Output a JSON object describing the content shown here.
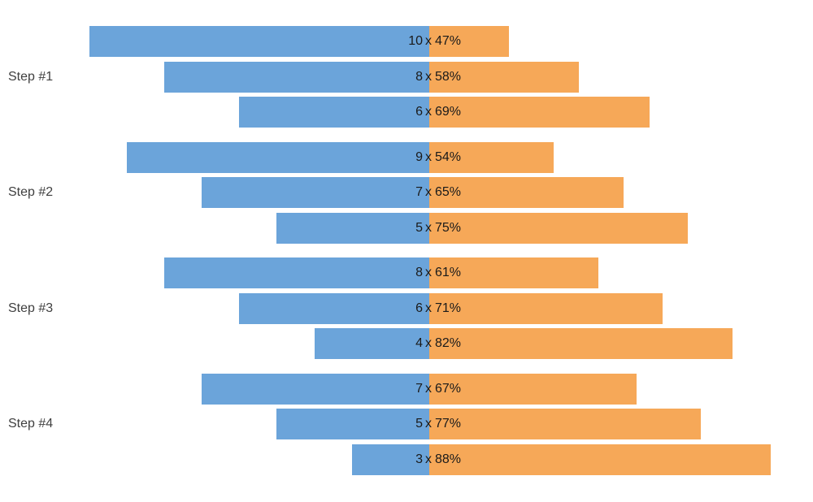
{
  "chart_data": {
    "type": "bar",
    "orientation": "horizontal",
    "variant": "paired-diverging-bars-around-center-axis",
    "title": "",
    "xlabel": "",
    "ylabel": "",
    "grid": false,
    "legend": false,
    "center_separator": "x",
    "percent_suffix": "%",
    "series": [
      {
        "name": "count",
        "side": "left",
        "color": "#6BA4DA"
      },
      {
        "name": "percent",
        "side": "right",
        "color": "#F6A858"
      }
    ],
    "groups": [
      {
        "label": "Step #1",
        "rows": [
          {
            "count": 10,
            "percent": 47,
            "label": "10 x 47%"
          },
          {
            "count": 8,
            "percent": 58,
            "label": "8 x 58%"
          },
          {
            "count": 6,
            "percent": 69,
            "label": "6 x 69%"
          }
        ]
      },
      {
        "label": "Step #2",
        "rows": [
          {
            "count": 9,
            "percent": 54,
            "label": "9 x 54%"
          },
          {
            "count": 7,
            "percent": 65,
            "label": "7 x 65%"
          },
          {
            "count": 5,
            "percent": 75,
            "label": "5 x 75%"
          }
        ]
      },
      {
        "label": "Step #3",
        "rows": [
          {
            "count": 8,
            "percent": 61,
            "label": "8 x 61%"
          },
          {
            "count": 6,
            "percent": 71,
            "label": "6 x 71%"
          },
          {
            "count": 4,
            "percent": 82,
            "label": "4 x 82%"
          }
        ]
      },
      {
        "label": "Step #4",
        "rows": [
          {
            "count": 7,
            "percent": 67,
            "label": "7 x 67%"
          },
          {
            "count": 5,
            "percent": 77,
            "label": "5 x 77%"
          },
          {
            "count": 3,
            "percent": 88,
            "label": "3 x 88%"
          }
        ]
      }
    ]
  },
  "colors": {
    "background": "#ffffff",
    "count_bar": "#6BA4DA",
    "percent_bar": "#F6A858",
    "bar_label": "#1a1a1a",
    "step_label": "#3f3f3f"
  }
}
